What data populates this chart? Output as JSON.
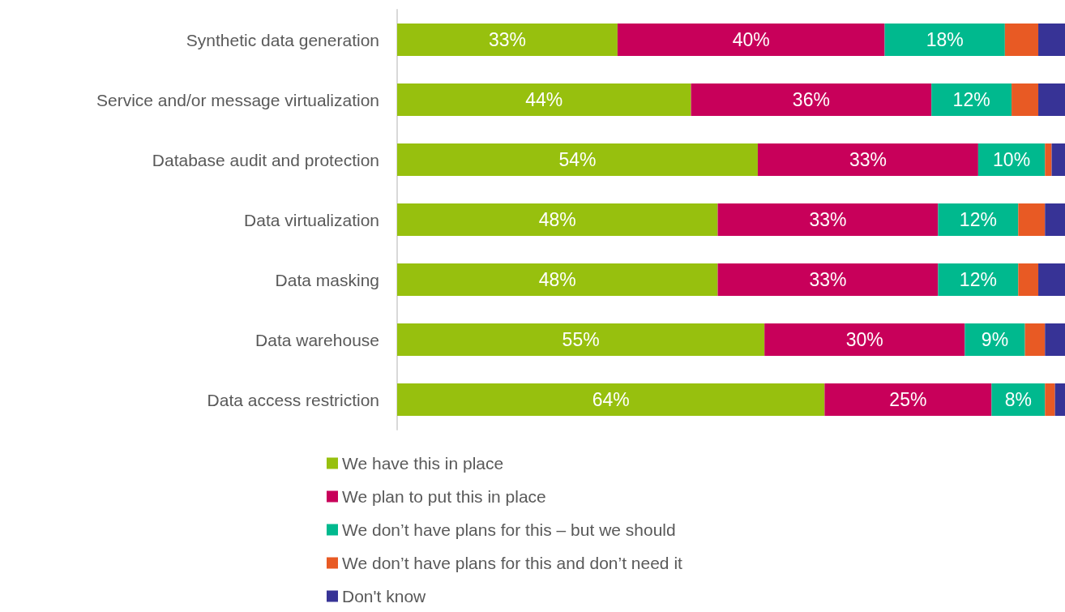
{
  "chart_data": {
    "type": "bar",
    "orientation": "horizontal",
    "stacked": true,
    "xlim": [
      0,
      100
    ],
    "legend": "bottom",
    "categories": [
      "Synthetic data generation",
      "Service and/or message virtualization",
      "Database audit and protection",
      "Data virtualization",
      "Data masking",
      "Data warehouse",
      "Data access restriction"
    ],
    "series": [
      {
        "name": "We have this in place",
        "color": "#97c00e",
        "values": [
          33,
          44,
          54,
          48,
          48,
          55,
          64
        ],
        "value_labels": [
          "33%",
          "44%",
          "54%",
          "48%",
          "48%",
          "55%",
          "64%"
        ]
      },
      {
        "name": "We plan to put this in place",
        "color": "#c8005a",
        "values": [
          40,
          36,
          33,
          33,
          33,
          30,
          25
        ],
        "value_labels": [
          "40%",
          "36%",
          "33%",
          "33%",
          "33%",
          "30%",
          "25%"
        ]
      },
      {
        "name": "We don’t have plans for this – but we should",
        "color": "#00b98e",
        "values": [
          18,
          12,
          10,
          12,
          12,
          9,
          8
        ],
        "value_labels": [
          "18%",
          "12%",
          "10%",
          "12%",
          "12%",
          "9%",
          "8%"
        ]
      },
      {
        "name": "We don’t have plans for this and don’t need it",
        "color": "#e85a24",
        "values": [
          5,
          4,
          1,
          4,
          3,
          3,
          1.5
        ],
        "value_labels": [
          null,
          null,
          null,
          null,
          null,
          null,
          null
        ]
      },
      {
        "name": "Don't know",
        "color": "#373396",
        "values": [
          4,
          4,
          2,
          3,
          4,
          3,
          1.5
        ],
        "value_labels": [
          null,
          null,
          null,
          null,
          null,
          null,
          null
        ]
      }
    ]
  }
}
